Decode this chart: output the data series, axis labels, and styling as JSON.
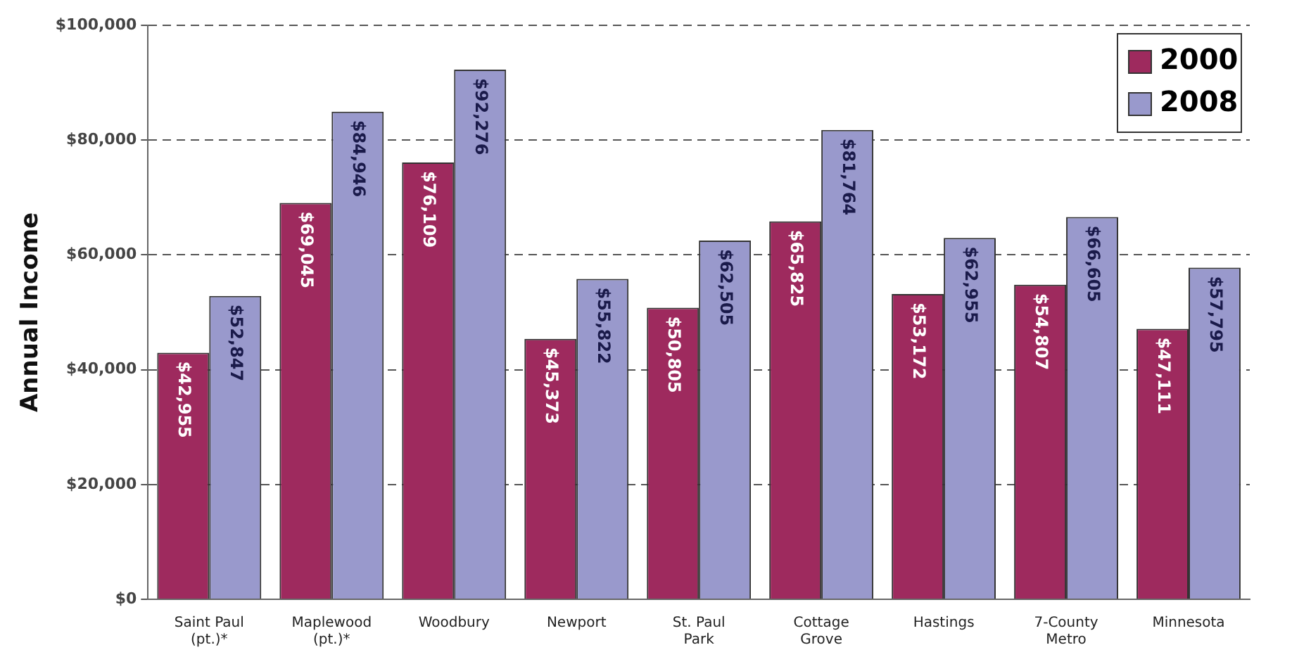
{
  "chart_data": {
    "type": "bar",
    "ylabel": "Annual Income",
    "categories": [
      "Saint Paul\n(pt.)*",
      "Maplewood\n(pt.)*",
      "Woodbury",
      "Newport",
      "St. Paul\nPark",
      "Cottage\nGrove",
      "Hastings",
      "7-County\nMetro",
      "Minnesota"
    ],
    "series": [
      {
        "name": "2000",
        "color": "#9e2a5e",
        "values": [
          42955,
          69045,
          76109,
          45373,
          50805,
          65825,
          53172,
          54807,
          47111
        ],
        "value_labels": [
          "$42,955",
          "$69,045",
          "$76,109",
          "$45,373",
          "$50,805",
          "$65,825",
          "$53,172",
          "$54,807",
          "$47,111"
        ]
      },
      {
        "name": "2008",
        "color": "#9999cc",
        "values": [
          52847,
          84946,
          92276,
          55822,
          62505,
          81764,
          62955,
          66605,
          57795
        ],
        "value_labels": [
          "$52,847",
          "$84,946",
          "$92,276",
          "$55,822",
          "$62,505",
          "$81,764",
          "$62,955",
          "$66,605",
          "$57,795"
        ]
      }
    ],
    "ylim": [
      0,
      100000
    ],
    "yticks": [
      {
        "value": 0,
        "label": "$0"
      },
      {
        "value": 20000,
        "label": "$20,000"
      },
      {
        "value": 40000,
        "label": "$40,000"
      },
      {
        "value": 60000,
        "label": "$60,000"
      },
      {
        "value": 80000,
        "label": "$80,000"
      },
      {
        "value": 100000,
        "label": "$100,000"
      }
    ],
    "grid": "y",
    "legend": "top right"
  }
}
